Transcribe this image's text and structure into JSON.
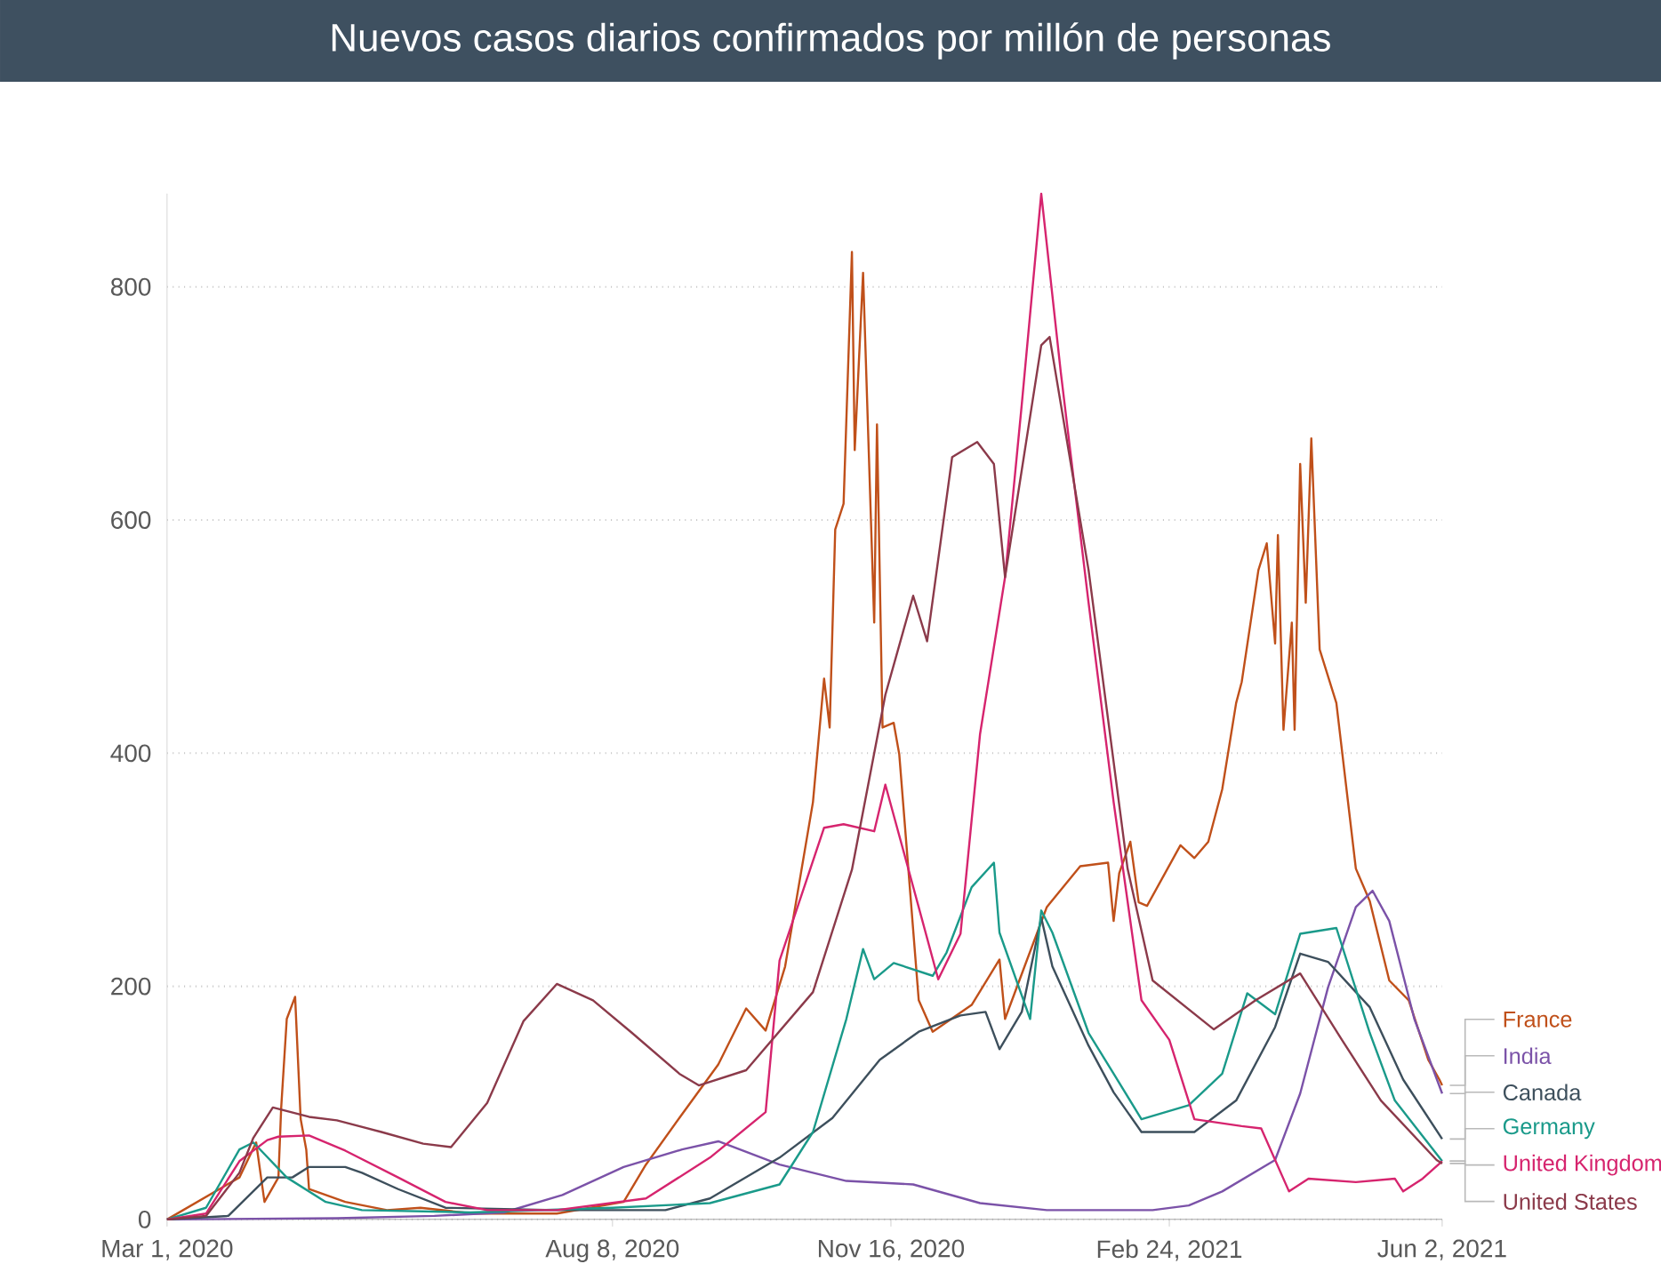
{
  "chart_data": {
    "type": "line",
    "title": "Nuevos casos diarios confirmados por millón de personas",
    "xlim": [
      "2020-03-01",
      "2021-06-02"
    ],
    "xticks": [
      {
        "value": "2020-03-01",
        "label": "Mar 1, 2020"
      },
      {
        "value": "2020-08-08",
        "label": "Aug 8, 2020"
      },
      {
        "value": "2020-11-16",
        "label": "Nov 16, 2020"
      },
      {
        "value": "2021-02-24",
        "label": "Feb 24, 2021"
      },
      {
        "value": "2021-06-02",
        "label": "Jun 2, 2021"
      }
    ],
    "ylim": [
      0,
      880
    ],
    "yticks": [
      0,
      200,
      400,
      600,
      800
    ],
    "grid": "y",
    "series": [
      {
        "name": "France",
        "color": "#c0501a",
        "x": [
          "2020-03-01",
          "2020-03-27",
          "2020-04-02",
          "2020-04-05",
          "2020-04-10",
          "2020-04-11",
          "2020-04-13",
          "2020-04-16",
          "2020-04-18",
          "2020-04-20",
          "2020-04-21",
          "2020-05-04",
          "2020-05-19",
          "2020-05-31",
          "2020-06-19",
          "2020-07-19",
          "2020-08-12",
          "2020-08-20",
          "2020-09-01",
          "2020-09-15",
          "2020-09-25",
          "2020-10-02",
          "2020-10-09",
          "2020-10-19",
          "2020-10-23",
          "2020-10-25",
          "2020-10-27",
          "2020-10-30",
          "2020-11-02",
          "2020-11-03",
          "2020-11-06",
          "2020-11-10",
          "2020-11-11",
          "2020-11-13",
          "2020-11-17",
          "2020-11-19",
          "2020-11-26",
          "2020-12-01",
          "2020-12-15",
          "2020-12-25",
          "2020-12-27",
          "2021-01-03",
          "2021-01-11",
          "2021-01-23",
          "2021-02-02",
          "2021-02-04",
          "2021-02-06",
          "2021-02-10",
          "2021-02-13",
          "2021-02-16",
          "2021-02-28",
          "2021-03-05",
          "2021-03-10",
          "2021-03-15",
          "2021-03-20",
          "2021-03-22",
          "2021-03-28",
          "2021-03-31",
          "2021-04-03",
          "2021-04-04",
          "2021-04-06",
          "2021-04-09",
          "2021-04-10",
          "2021-04-12",
          "2021-04-14",
          "2021-04-16",
          "2021-04-19",
          "2021-04-25",
          "2021-05-02",
          "2021-05-07",
          "2021-05-14",
          "2021-05-21",
          "2021-05-28",
          "2021-06-01",
          "2021-06-02"
        ],
        "values": [
          0,
          36,
          66,
          15,
          36,
          96,
          172,
          191,
          86,
          60,
          26,
          15,
          8,
          10,
          5,
          5,
          15,
          47,
          87,
          133,
          181,
          162,
          217,
          358,
          464,
          422,
          592,
          614,
          830,
          660,
          812,
          512,
          682,
          422,
          426,
          399,
          188,
          161,
          184,
          223,
          172,
          217,
          268,
          303,
          306,
          256,
          297,
          324,
          272,
          269,
          321,
          310,
          324,
          369,
          443,
          461,
          557,
          580,
          494,
          587,
          420,
          512,
          420,
          648,
          529,
          670,
          489,
          443,
          301,
          273,
          205,
          188,
          137,
          120,
          115
        ]
      },
      {
        "name": "India",
        "color": "#7b52a8",
        "x": [
          "2020-03-01",
          "2020-05-01",
          "2020-06-05",
          "2020-06-30",
          "2020-07-21",
          "2020-08-12",
          "2020-09-02",
          "2020-09-15",
          "2020-10-07",
          "2020-10-31",
          "2020-11-24",
          "2020-12-18",
          "2021-01-11",
          "2021-02-18",
          "2021-03-03",
          "2021-03-15",
          "2021-04-03",
          "2021-04-12",
          "2021-04-22",
          "2021-05-02",
          "2021-05-08",
          "2021-05-14",
          "2021-05-23",
          "2021-06-02"
        ],
        "values": [
          0,
          1,
          3,
          6,
          21,
          45,
          60,
          67,
          47,
          33,
          30,
          14,
          8,
          8,
          12,
          24,
          51,
          108,
          199,
          268,
          282,
          256,
          172,
          108
        ]
      },
      {
        "name": "Canada",
        "color": "#3d4f5c",
        "x": [
          "2020-03-01",
          "2020-03-23",
          "2020-04-06",
          "2020-04-15",
          "2020-04-21",
          "2020-05-04",
          "2020-05-10",
          "2020-05-23",
          "2020-06-09",
          "2020-07-19",
          "2020-08-27",
          "2020-09-12",
          "2020-10-07",
          "2020-10-26",
          "2020-11-12",
          "2020-11-26",
          "2020-12-11",
          "2020-12-20",
          "2020-12-25",
          "2021-01-02",
          "2021-01-09",
          "2021-01-13",
          "2021-01-26",
          "2021-02-04",
          "2021-02-14",
          "2021-03-05",
          "2021-03-20",
          "2021-04-03",
          "2021-04-12",
          "2021-04-22",
          "2021-05-07",
          "2021-05-19",
          "2021-06-02"
        ],
        "values": [
          0,
          3,
          36,
          36,
          45,
          45,
          40,
          26,
          10,
          8,
          8,
          18,
          53,
          87,
          137,
          161,
          175,
          178,
          146,
          178,
          259,
          217,
          149,
          109,
          75,
          75,
          102,
          165,
          228,
          221,
          182,
          120,
          69
        ]
      },
      {
        "name": "Germany",
        "color": "#1a9a8a",
        "x": [
          "2020-03-01",
          "2020-03-15",
          "2020-03-27",
          "2020-04-01",
          "2020-04-13",
          "2020-04-27",
          "2020-05-10",
          "2020-06-18",
          "2020-08-08",
          "2020-09-12",
          "2020-10-07",
          "2020-10-19",
          "2020-10-31",
          "2020-11-06",
          "2020-11-10",
          "2020-11-17",
          "2020-12-01",
          "2020-12-06",
          "2020-12-15",
          "2020-12-23",
          "2020-12-25",
          "2021-01-05",
          "2021-01-09",
          "2021-01-13",
          "2021-01-26",
          "2021-02-04",
          "2021-02-14",
          "2021-03-03",
          "2021-03-15",
          "2021-03-24",
          "2021-04-03",
          "2021-04-12",
          "2021-04-25",
          "2021-05-07",
          "2021-05-16",
          "2021-06-02"
        ],
        "values": [
          0,
          10,
          60,
          66,
          36,
          15,
          8,
          6,
          10,
          14,
          30,
          75,
          172,
          232,
          206,
          220,
          209,
          229,
          285,
          306,
          246,
          172,
          265,
          246,
          160,
          125,
          86,
          98,
          125,
          194,
          176,
          245,
          250,
          160,
          102,
          50
        ]
      },
      {
        "name": "United Kingdom",
        "color": "#d6246e",
        "x": [
          "2020-03-01",
          "2020-03-15",
          "2020-03-27",
          "2020-04-06",
          "2020-04-10",
          "2020-04-21",
          "2020-05-04",
          "2020-05-23",
          "2020-06-09",
          "2020-06-24",
          "2020-07-19",
          "2020-08-20",
          "2020-09-12",
          "2020-10-02",
          "2020-10-07",
          "2020-10-23",
          "2020-10-30",
          "2020-11-10",
          "2020-11-14",
          "2020-11-22",
          "2020-12-03",
          "2020-12-11",
          "2020-12-18",
          "2020-12-27",
          "2021-01-02",
          "2021-01-09",
          "2021-01-16",
          "2021-01-26",
          "2021-02-04",
          "2021-02-14",
          "2021-02-24",
          "2021-03-05",
          "2021-03-22",
          "2021-03-29",
          "2021-04-08",
          "2021-04-15",
          "2021-05-02",
          "2021-05-16",
          "2021-05-19",
          "2021-05-26",
          "2021-06-02"
        ],
        "values": [
          0,
          5,
          50,
          68,
          71,
          72,
          59,
          36,
          15,
          8,
          8,
          18,
          53,
          92,
          222,
          336,
          339,
          333,
          373,
          303,
          206,
          245,
          416,
          551,
          699,
          880,
          727,
          529,
          358,
          188,
          154,
          86,
          80,
          78,
          24,
          35,
          32,
          35,
          24,
          35,
          50
        ]
      },
      {
        "name": "United States",
        "color": "#8b3a4a",
        "x": [
          "2020-03-01",
          "2020-03-15",
          "2020-03-27",
          "2020-04-01",
          "2020-04-08",
          "2020-04-21",
          "2020-05-01",
          "2020-05-17",
          "2020-06-01",
          "2020-06-11",
          "2020-06-24",
          "2020-07-07",
          "2020-07-19",
          "2020-08-01",
          "2020-08-15",
          "2020-09-01",
          "2020-09-08",
          "2020-09-25",
          "2020-10-19",
          "2020-11-02",
          "2020-11-14",
          "2020-11-24",
          "2020-11-29",
          "2020-12-08",
          "2020-12-17",
          "2020-12-23",
          "2020-12-27",
          "2021-01-09",
          "2021-01-12",
          "2021-01-26",
          "2021-02-09",
          "2021-02-18",
          "2021-03-12",
          "2021-03-27",
          "2021-04-12",
          "2021-04-27",
          "2021-05-11",
          "2021-05-31",
          "2021-06-02"
        ],
        "values": [
          0,
          3,
          40,
          70,
          96,
          88,
          85,
          75,
          65,
          62,
          100,
          170,
          202,
          188,
          160,
          125,
          115,
          128,
          195,
          300,
          450,
          535,
          496,
          654,
          667,
          648,
          551,
          750,
          757,
          557,
          301,
          205,
          163,
          188,
          211,
          154,
          102,
          51,
          48
        ]
      }
    ]
  }
}
